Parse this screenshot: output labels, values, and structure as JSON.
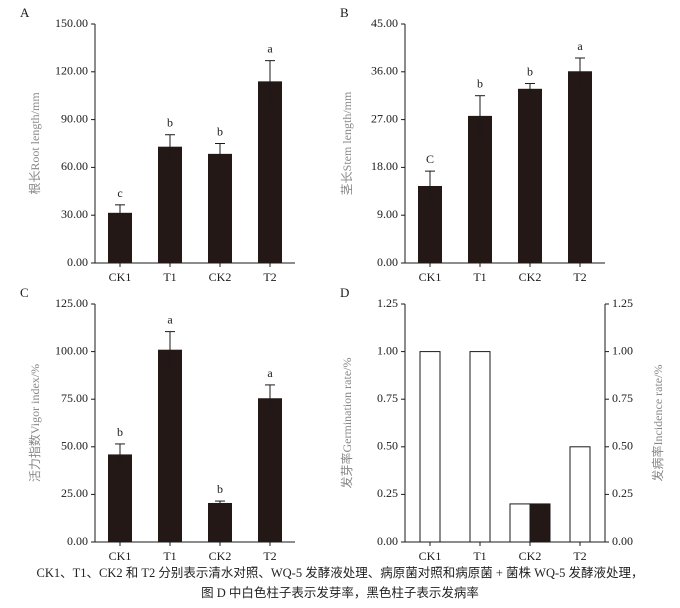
{
  "caption": {
    "line1": "CK1、T1、CK2 和 T2 分别表示清水对照、WQ-5 发酵液处理、病原菌对照和病原菌 + 菌株 WQ-5 发酵液处理，",
    "line2": "图 D 中白色柱子表示发芽率，黑色柱子表示发病率"
  },
  "colors": {
    "bar_fill": "#231815",
    "white_bar": "#ffffff",
    "axis": "#1a1a1a",
    "ylabel_text": "#888888"
  },
  "chart_data": [
    {
      "panel": "A",
      "type": "bar",
      "categories": [
        "CK1",
        "T1",
        "CK2",
        "T2"
      ],
      "values": [
        31.5,
        73.0,
        68.5,
        114.0
      ],
      "errors": [
        5.0,
        7.5,
        6.5,
        13.0
      ],
      "significance": [
        "c",
        "b",
        "b",
        "a"
      ],
      "ylabel": "根长Root length/mm",
      "ylim": [
        0,
        150
      ],
      "yticks": [
        "0.00",
        "30.00",
        "60.00",
        "90.00",
        "120.00",
        "150.00"
      ]
    },
    {
      "panel": "B",
      "type": "bar",
      "categories": [
        "CK1",
        "T1",
        "CK2",
        "T2"
      ],
      "values": [
        14.5,
        27.7,
        32.8,
        36.1
      ],
      "errors": [
        2.8,
        3.8,
        1.0,
        2.5
      ],
      "significance": [
        "C",
        "b",
        "b",
        "a"
      ],
      "ylabel": "茎长Stem length/mm",
      "ylim": [
        0,
        45
      ],
      "yticks": [
        "0.00",
        "9.00",
        "18.00",
        "27.00",
        "36.00",
        "45.00"
      ]
    },
    {
      "panel": "C",
      "type": "bar",
      "categories": [
        "CK1",
        "T1",
        "CK2",
        "T2"
      ],
      "values": [
        46.0,
        101.0,
        20.5,
        75.5
      ],
      "errors": [
        5.5,
        9.5,
        1.0,
        7.0
      ],
      "significance": [
        "b",
        "a",
        "b",
        "a"
      ],
      "ylabel": "活力指数Vigor index/%",
      "ylim": [
        0,
        125
      ],
      "yticks": [
        "0.00",
        "25.00",
        "50.00",
        "75.00",
        "100.00",
        "125.00"
      ]
    },
    {
      "panel": "D",
      "type": "bar",
      "categories": [
        "CK1",
        "T1",
        "CK2",
        "T2"
      ],
      "series": [
        {
          "values": [
            1.0,
            1.0,
            0.2,
            0.5
          ],
          "fill": "white"
        },
        {
          "values": [
            0.0,
            0.0,
            0.2,
            0.0
          ],
          "fill": "black"
        }
      ],
      "ylabel": "发芽率Germination rate/%",
      "y2label": "发病率Incidence rate/%",
      "ylim": [
        0,
        1.25
      ],
      "yticks": [
        "0.00",
        "0.25",
        "0.50",
        "0.75",
        "1.00",
        "1.25"
      ],
      "y2ticks": [
        "0.00",
        "0.25",
        "0.50",
        "0.75",
        "1.00",
        "1.25"
      ]
    }
  ]
}
